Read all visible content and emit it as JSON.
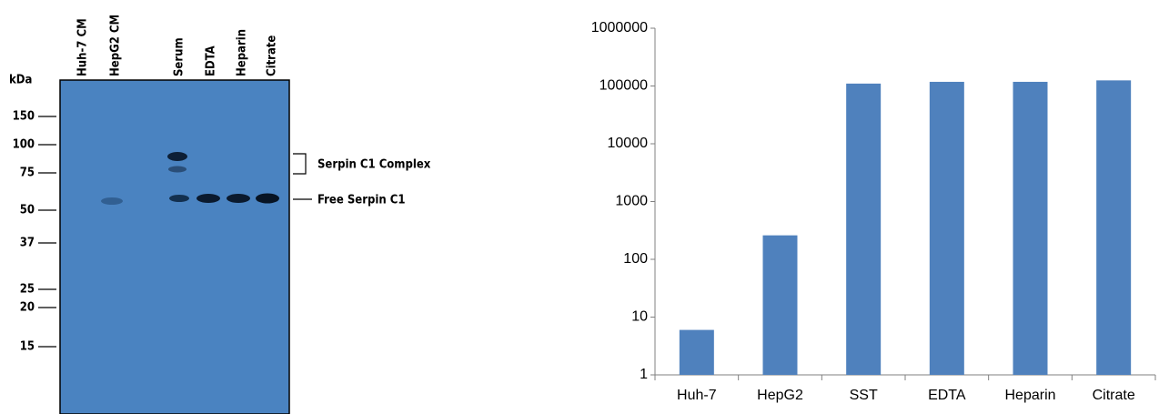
{
  "blot": {
    "unit": "kDa",
    "lanes": [
      "Huh-7 CM",
      "HepG2 CM",
      "Serum",
      "EDTA",
      "Heparin",
      "Citrate"
    ],
    "markers": [
      150,
      100,
      75,
      50,
      37,
      25,
      20,
      15
    ],
    "annotations": [
      "Serpin C1 Complex",
      "Free Serpin C1"
    ]
  },
  "chart_data": {
    "type": "bar",
    "categories": [
      "Huh-7",
      "HepG2",
      "SST",
      "EDTA",
      "Heparin",
      "Citrate"
    ],
    "values": [
      6,
      260,
      110000,
      118000,
      118000,
      125000
    ],
    "color": "#4f81bd",
    "log": true,
    "ylim": [
      1,
      1000000
    ],
    "yticks": [
      1,
      10,
      100,
      1000,
      10000,
      100000,
      1000000
    ]
  }
}
